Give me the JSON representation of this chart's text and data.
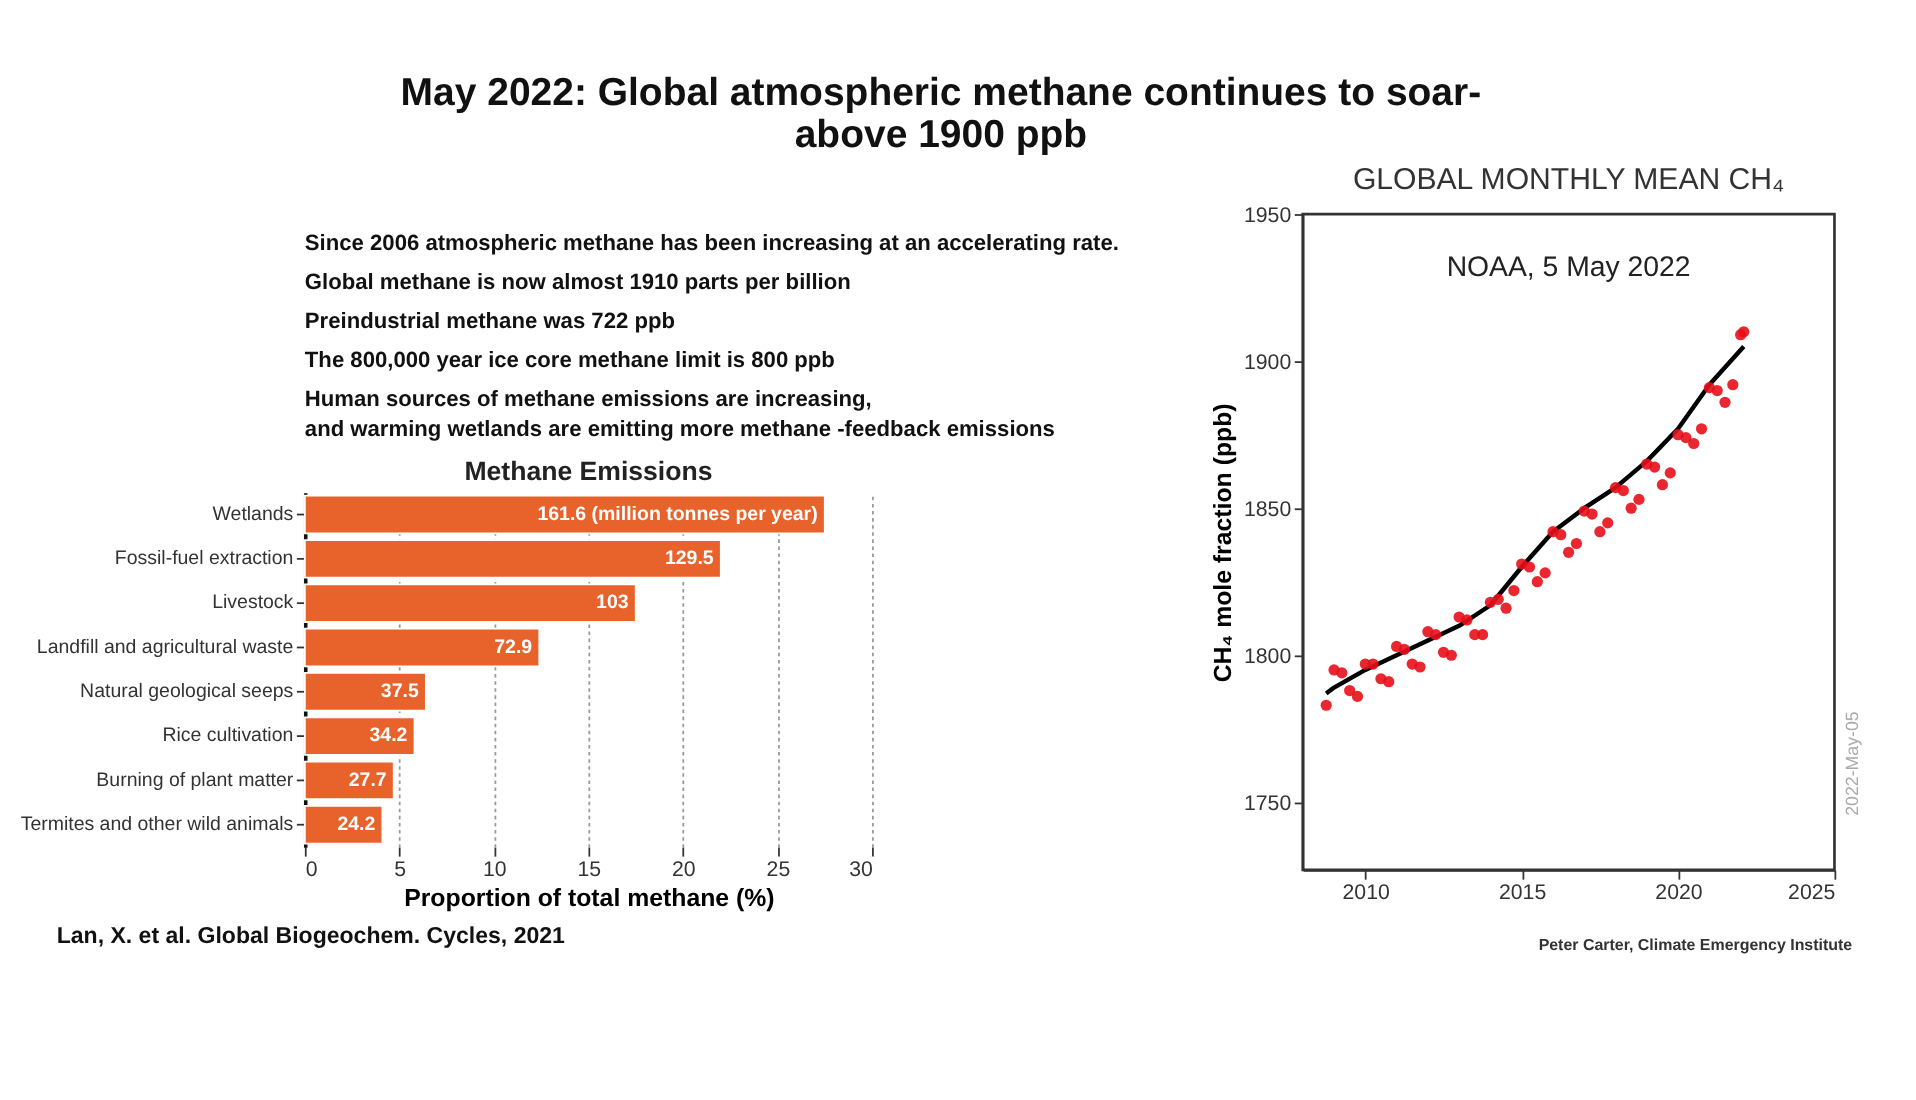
{
  "chart_data": [
    {
      "type": "other",
      "title": "May 2022: Global atmospheric methane continues to soar- above 1900 ppb",
      "annotations": [
        "Since 2006 atmospheric  methane has been increasing at an accelerating rate.",
        "Global methane is now almost 1910 parts per billion",
        "Preindustrial  methane was 722 ppb",
        "The 800,000 year ice core methane limit is 800 ppb",
        "Human sources of methane emissions are increasing,",
        "and warming wetlands are emitting more methane -feedback emissions"
      ]
    },
    {
      "type": "bar",
      "orientation": "horizontal",
      "title": "Methane Emissions",
      "xlabel": "Proportion of total methane (%)",
      "categories": [
        "Wetlands",
        "Fossil-fuel extraction",
        "Livestock",
        "Landfill and agricultural waste",
        "Natural geological seeps",
        "Rice cultivation",
        "Burning of plant matter",
        "Termites and other wild animals"
      ],
      "values": [
        27.5,
        22.0,
        17.5,
        12.4,
        6.4,
        5.8,
        4.7,
        4.1
      ],
      "color": "#e8622c",
      "xlim": [
        0,
        30
      ],
      "xticks": [
        0,
        5,
        10,
        15,
        20,
        25,
        30
      ],
      "grid": "x",
      "annotations": [
        "Lan, X. et al. Global Biogeochem. Cycles, 2021",
        {
          "text": "161.6 (million tonnes per year)",
          "x": 27.5,
          "y": "Wetlands"
        },
        {
          "text": "129.5",
          "x": 22.0,
          "y": "Fossil-fuel extraction"
        },
        {
          "text": "103",
          "x": 17.5,
          "y": "Livestock"
        },
        {
          "text": "72.9",
          "x": 12.4,
          "y": "Landfill and agricultural waste"
        },
        {
          "text": "37.5",
          "x": 6.4,
          "y": "Natural geological seeps"
        },
        {
          "text": "34.2",
          "x": 5.8,
          "y": "Rice cultivation"
        },
        {
          "text": "27.7",
          "x": 4.7,
          "y": "Burning of plant matter"
        },
        {
          "text": "24.2",
          "x": 4.1,
          "y": "Termites and other wild animals"
        }
      ]
    },
    {
      "type": "scatter",
      "title": "GLOBAL MONTHLY MEAN CH₄",
      "ylabel": "CH₄  mole fraction (ppb)",
      "xlim": [
        2008,
        2025
      ],
      "xticks": [
        2010,
        2015,
        2020,
        2025
      ],
      "ylim": [
        1727,
        1950
      ],
      "yticks": [
        1750,
        1800,
        1850,
        1900,
        1950
      ],
      "series": [
        {
          "type": "scatter",
          "marker": "circle",
          "color": "#e8101a",
          "x": [
            2008.75,
            2009.0,
            2009.25,
            2009.5,
            2009.75,
            2010.0,
            2010.25,
            2010.5,
            2010.75,
            2011.0,
            2011.25,
            2011.5,
            2011.75,
            2012.0,
            2012.25,
            2012.5,
            2012.75,
            2013.0,
            2013.25,
            2013.5,
            2013.75,
            2014.0,
            2014.25,
            2014.5,
            2014.75,
            2015.0,
            2015.25,
            2015.5,
            2015.75,
            2016.0,
            2016.25,
            2016.5,
            2016.75,
            2017.0,
            2017.25,
            2017.5,
            2017.75,
            2018.0,
            2018.25,
            2018.5,
            2018.75,
            2019.0,
            2019.25,
            2019.5,
            2019.75,
            2020.0,
            2020.25,
            2020.5,
            2020.75,
            2021.0,
            2021.25,
            2021.5,
            2021.75,
            2022.0,
            2022.1
          ],
          "values": [
            1783,
            1795,
            1794,
            1788,
            1786,
            1797,
            1797,
            1792,
            1791,
            1803,
            1802,
            1797,
            1796,
            1808,
            1807,
            1801,
            1800,
            1813,
            1812,
            1807,
            1807,
            1818,
            1819,
            1816,
            1822,
            1831,
            1830,
            1825,
            1828,
            1842,
            1841,
            1835,
            1838,
            1849,
            1848,
            1842,
            1845,
            1857,
            1856,
            1850,
            1853,
            1865,
            1864,
            1858,
            1862,
            1875,
            1874,
            1872,
            1877,
            1891,
            1890,
            1886,
            1892,
            1909,
            1910
          ]
        },
        {
          "type": "line",
          "color": "#000000",
          "x": [
            2008.75,
            2009,
            2010,
            2011,
            2012,
            2013,
            2014,
            2015,
            2016,
            2017,
            2018,
            2019,
            2020,
            2021,
            2022.1
          ],
          "values": [
            1787,
            1789,
            1795,
            1800,
            1805,
            1810,
            1817,
            1830,
            1842,
            1850,
            1857,
            1866,
            1877,
            1892,
            1905
          ]
        }
      ],
      "annotations": [
        "NOAA, 5 May 2022",
        "2022-May-05",
        "Peter Carter, Climate Emergency Institute"
      ]
    }
  ]
}
